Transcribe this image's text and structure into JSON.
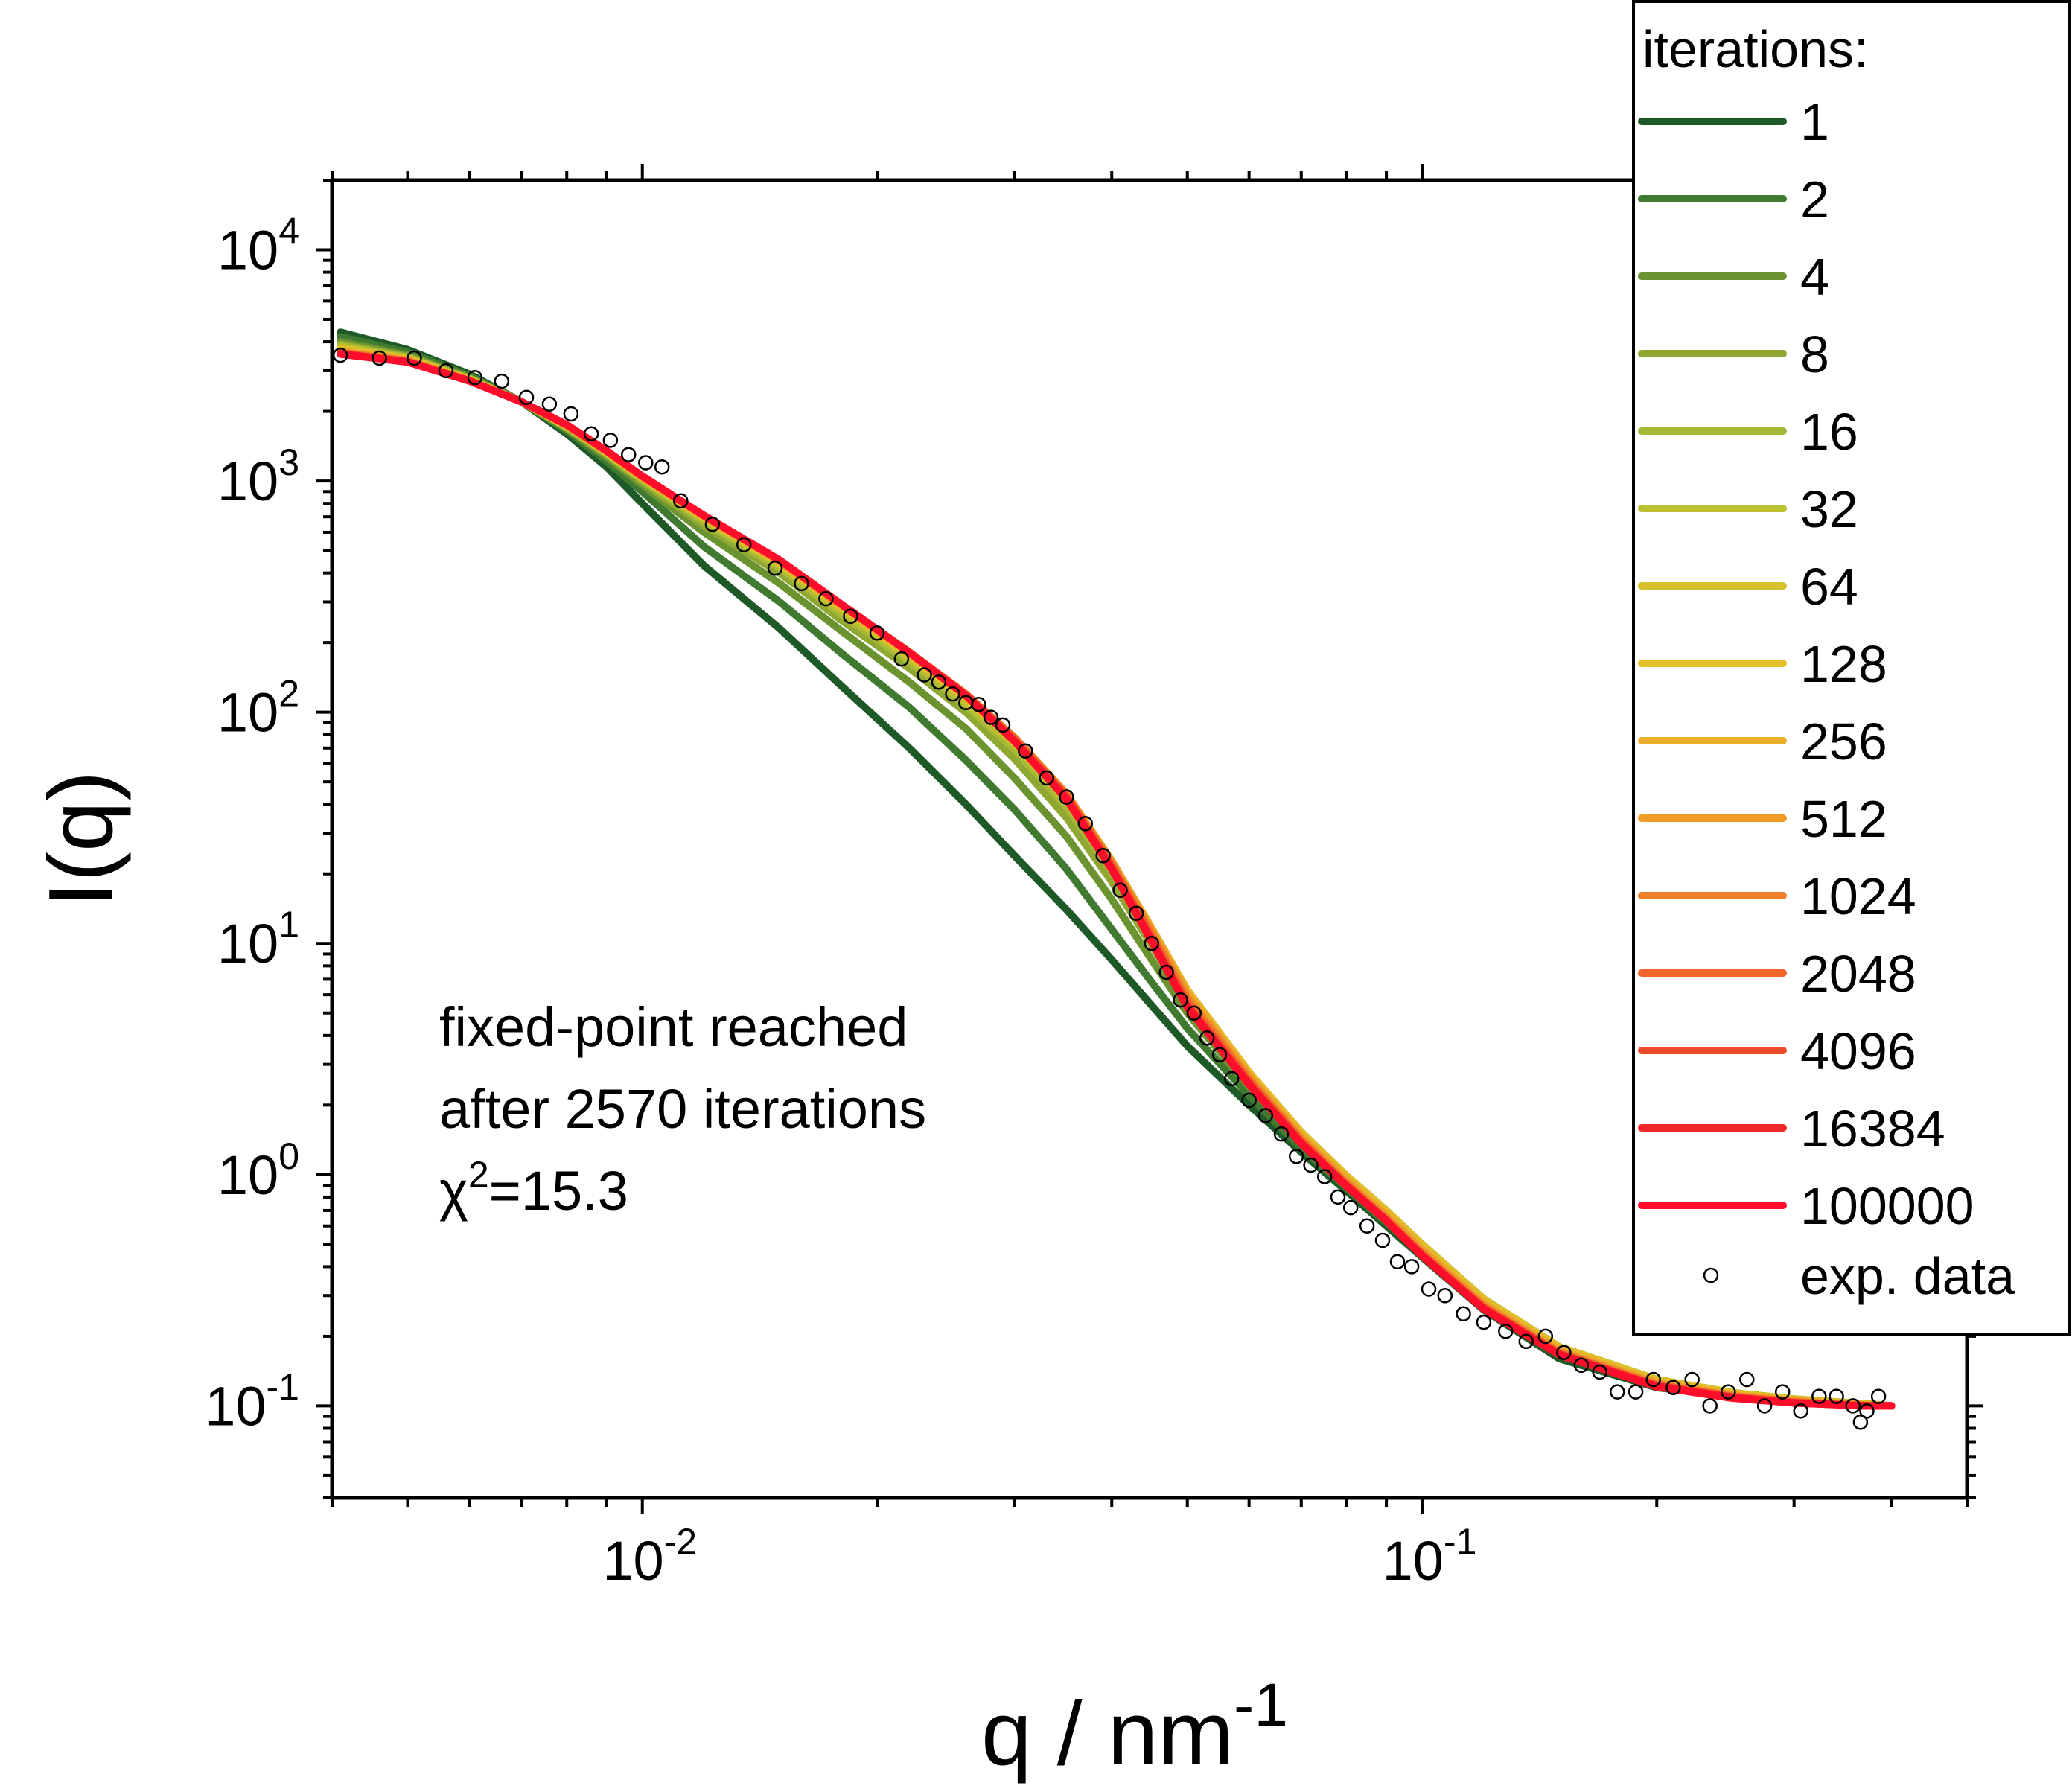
{
  "chart_data": {
    "type": "line",
    "xlabel": {
      "base": "q / nm",
      "exp": "-1"
    },
    "ylabel": "I(q)",
    "x_scale": "log",
    "y_scale": "log",
    "xlim": [
      0.004,
      0.5
    ],
    "ylim": [
      0.04,
      20000
    ],
    "x_ticks": [
      {
        "value": 0.01,
        "base": "10",
        "exp": "-2"
      },
      {
        "value": 0.1,
        "base": "10",
        "exp": "-1"
      }
    ],
    "y_ticks": [
      {
        "value": 10000,
        "base": "10",
        "exp": "4"
      },
      {
        "value": 1000,
        "base": "10",
        "exp": "3"
      },
      {
        "value": 100,
        "base": "10",
        "exp": "2"
      },
      {
        "value": 10,
        "base": "10",
        "exp": "1"
      },
      {
        "value": 1,
        "base": "10",
        "exp": "0"
      },
      {
        "value": 0.1,
        "base": "10",
        "exp": "-1"
      }
    ],
    "grid": false,
    "legend": {
      "title": "iterations:",
      "placement": "top-right",
      "data_label": "exp. data"
    },
    "annotation": {
      "line1": "fixed-point reached",
      "line2": "after 2570 iterations",
      "line3_base": "χ",
      "line3_exp": "2",
      "line3_rest": "=15.3"
    },
    "series": [
      {
        "name": "1",
        "color": "#1e5a28",
        "x": [
          0.0041,
          0.005,
          0.006,
          0.007,
          0.008,
          0.009,
          0.01,
          0.012,
          0.015,
          0.018,
          0.022,
          0.026,
          0.03,
          0.035,
          0.04,
          0.045,
          0.05,
          0.06,
          0.07,
          0.08,
          0.09,
          0.1,
          0.12,
          0.15,
          0.2,
          0.25,
          0.3,
          0.37,
          0.4
        ],
        "y": [
          4400,
          3700,
          2900,
          2200,
          1600,
          1150,
          800,
          430,
          230,
          130,
          70,
          40,
          24,
          14,
          8.5,
          5.4,
          3.6,
          2.0,
          1.25,
          0.85,
          0.6,
          0.44,
          0.26,
          0.16,
          0.12,
          0.11,
          0.105,
          0.102,
          0.1
        ]
      },
      {
        "name": "2",
        "color": "#3f7a30",
        "x": [
          0.0041,
          0.005,
          0.006,
          0.007,
          0.008,
          0.009,
          0.01,
          0.012,
          0.015,
          0.018,
          0.022,
          0.026,
          0.03,
          0.035,
          0.04,
          0.045,
          0.05,
          0.06,
          0.07,
          0.08,
          0.09,
          0.1,
          0.12,
          0.15,
          0.2,
          0.25,
          0.3,
          0.37,
          0.4
        ],
        "y": [
          4200,
          3600,
          2850,
          2200,
          1650,
          1220,
          900,
          520,
          300,
          180,
          105,
          62,
          38,
          21,
          11.5,
          6.8,
          4.3,
          2.2,
          1.3,
          0.88,
          0.62,
          0.46,
          0.27,
          0.17,
          0.125,
          0.112,
          0.106,
          0.102,
          0.1
        ]
      },
      {
        "name": "4",
        "color": "#6b9430",
        "x": [
          0.0041,
          0.005,
          0.006,
          0.007,
          0.008,
          0.009,
          0.01,
          0.012,
          0.015,
          0.018,
          0.022,
          0.026,
          0.03,
          0.035,
          0.04,
          0.045,
          0.05,
          0.06,
          0.07,
          0.08,
          0.09,
          0.1,
          0.12,
          0.15,
          0.2,
          0.25,
          0.3,
          0.37,
          0.4
        ],
        "y": [
          4000,
          3500,
          2800,
          2200,
          1680,
          1270,
          960,
          600,
          360,
          225,
          135,
          85,
          52,
          29,
          15.5,
          8.5,
          5.0,
          2.4,
          1.4,
          0.93,
          0.66,
          0.48,
          0.28,
          0.175,
          0.128,
          0.113,
          0.107,
          0.102,
          0.1
        ]
      },
      {
        "name": "8",
        "color": "#8fa832",
        "x": [
          0.0041,
          0.005,
          0.006,
          0.007,
          0.008,
          0.009,
          0.01,
          0.012,
          0.015,
          0.018,
          0.022,
          0.026,
          0.03,
          0.035,
          0.04,
          0.045,
          0.05,
          0.06,
          0.07,
          0.08,
          0.09,
          0.1,
          0.12,
          0.15,
          0.2,
          0.25,
          0.3,
          0.37,
          0.4
        ],
        "y": [
          3900,
          3450,
          2780,
          2200,
          1700,
          1300,
          990,
          640,
          400,
          250,
          155,
          100,
          63,
          35,
          18.5,
          9.8,
          5.6,
          2.6,
          1.48,
          0.97,
          0.69,
          0.5,
          0.29,
          0.18,
          0.13,
          0.114,
          0.107,
          0.102,
          0.1
        ]
      },
      {
        "name": "16",
        "color": "#a6b836",
        "x": [
          0.0041,
          0.005,
          0.006,
          0.007,
          0.008,
          0.009,
          0.01,
          0.012,
          0.015,
          0.018,
          0.022,
          0.026,
          0.03,
          0.035,
          0.04,
          0.045,
          0.05,
          0.06,
          0.07,
          0.08,
          0.09,
          0.1,
          0.12,
          0.15,
          0.2,
          0.25,
          0.3,
          0.37,
          0.4
        ],
        "y": [
          3850,
          3420,
          2770,
          2200,
          1710,
          1310,
          1010,
          665,
          420,
          265,
          165,
          107,
          69,
          39,
          20.5,
          10.8,
          6.0,
          2.7,
          1.52,
          0.99,
          0.7,
          0.5,
          0.29,
          0.18,
          0.13,
          0.114,
          0.107,
          0.102,
          0.1
        ]
      },
      {
        "name": "32",
        "color": "#bcbf30",
        "x": [
          0.0041,
          0.005,
          0.006,
          0.007,
          0.008,
          0.009,
          0.01,
          0.012,
          0.015,
          0.018,
          0.022,
          0.026,
          0.03,
          0.035,
          0.04,
          0.045,
          0.05,
          0.06,
          0.07,
          0.08,
          0.09,
          0.1,
          0.12,
          0.15,
          0.2,
          0.25,
          0.3,
          0.37,
          0.4
        ],
        "y": [
          3800,
          3400,
          2760,
          2200,
          1720,
          1320,
          1020,
          680,
          430,
          275,
          170,
          110,
          72,
          41,
          21.5,
          11.3,
          6.2,
          2.75,
          1.53,
          0.99,
          0.7,
          0.5,
          0.29,
          0.18,
          0.13,
          0.114,
          0.107,
          0.102,
          0.1
        ]
      },
      {
        "name": "64",
        "color": "#d6c02c",
        "x": [
          0.0041,
          0.005,
          0.006,
          0.007,
          0.008,
          0.009,
          0.01,
          0.012,
          0.015,
          0.018,
          0.022,
          0.026,
          0.03,
          0.035,
          0.04,
          0.045,
          0.05,
          0.06,
          0.07,
          0.08,
          0.09,
          0.1,
          0.12,
          0.15,
          0.2,
          0.25,
          0.3,
          0.37,
          0.4
        ],
        "y": [
          3750,
          3380,
          2750,
          2200,
          1730,
          1330,
          1030,
          690,
          440,
          282,
          175,
          114,
          75,
          43,
          22.3,
          11.6,
          6.3,
          2.78,
          1.53,
          0.99,
          0.7,
          0.5,
          0.29,
          0.18,
          0.13,
          0.114,
          0.107,
          0.102,
          0.1
        ]
      },
      {
        "name": "128",
        "color": "#e2c02a",
        "x": [
          0.0041,
          0.005,
          0.006,
          0.007,
          0.008,
          0.009,
          0.01,
          0.012,
          0.015,
          0.018,
          0.022,
          0.026,
          0.03,
          0.035,
          0.04,
          0.045,
          0.05,
          0.06,
          0.07,
          0.08,
          0.09,
          0.1,
          0.12,
          0.15,
          0.2,
          0.25,
          0.3,
          0.37,
          0.4
        ],
        "y": [
          3700,
          3360,
          2740,
          2200,
          1735,
          1335,
          1035,
          695,
          445,
          286,
          178,
          116,
          77,
          44,
          22.7,
          11.7,
          6.3,
          2.78,
          1.52,
          0.98,
          0.69,
          0.49,
          0.285,
          0.178,
          0.129,
          0.113,
          0.106,
          0.101,
          0.1
        ]
      },
      {
        "name": "256",
        "color": "#eaae2a",
        "x": [
          0.0041,
          0.005,
          0.006,
          0.007,
          0.008,
          0.009,
          0.01,
          0.012,
          0.015,
          0.018,
          0.022,
          0.026,
          0.03,
          0.035,
          0.04,
          0.045,
          0.05,
          0.06,
          0.07,
          0.08,
          0.09,
          0.1,
          0.12,
          0.15,
          0.2,
          0.25,
          0.3,
          0.37,
          0.4
        ],
        "y": [
          3660,
          3340,
          2730,
          2200,
          1740,
          1340,
          1040,
          700,
          448,
          288,
          180,
          118,
          78,
          44.5,
          22.8,
          11.6,
          6.2,
          2.72,
          1.48,
          0.96,
          0.68,
          0.48,
          0.28,
          0.175,
          0.127,
          0.112,
          0.105,
          0.101,
          0.1
        ]
      },
      {
        "name": "512",
        "color": "#f09a28",
        "x": [
          0.0041,
          0.005,
          0.006,
          0.007,
          0.008,
          0.009,
          0.01,
          0.012,
          0.015,
          0.018,
          0.022,
          0.026,
          0.03,
          0.035,
          0.04,
          0.045,
          0.05,
          0.06,
          0.07,
          0.08,
          0.09,
          0.1,
          0.12,
          0.15,
          0.2,
          0.25,
          0.3,
          0.37,
          0.4
        ],
        "y": [
          3630,
          3320,
          2725,
          2200,
          1742,
          1342,
          1042,
          702,
          450,
          290,
          181,
          119,
          78,
          44.5,
          22.6,
          11.4,
          6.0,
          2.66,
          1.45,
          0.94,
          0.66,
          0.47,
          0.275,
          0.172,
          0.125,
          0.111,
          0.105,
          0.101,
          0.1
        ]
      },
      {
        "name": "1024",
        "color": "#f07f2a",
        "x": [
          0.0041,
          0.005,
          0.006,
          0.007,
          0.008,
          0.009,
          0.01,
          0.012,
          0.015,
          0.018,
          0.022,
          0.026,
          0.03,
          0.035,
          0.04,
          0.045,
          0.05,
          0.06,
          0.07,
          0.08,
          0.09,
          0.1,
          0.12,
          0.15,
          0.2,
          0.25,
          0.3,
          0.37,
          0.4
        ],
        "y": [
          3600,
          3300,
          2720,
          2200,
          1745,
          1345,
          1045,
          704,
          452,
          292,
          182,
          120,
          78,
          44,
          22.2,
          11.1,
          5.8,
          2.6,
          1.42,
          0.92,
          0.65,
          0.46,
          0.27,
          0.17,
          0.124,
          0.11,
          0.104,
          0.1,
          0.1
        ]
      },
      {
        "name": "2048",
        "color": "#f0652a",
        "x": [
          0.0041,
          0.005,
          0.006,
          0.007,
          0.008,
          0.009,
          0.01,
          0.012,
          0.015,
          0.018,
          0.022,
          0.026,
          0.03,
          0.035,
          0.04,
          0.045,
          0.05,
          0.06,
          0.07,
          0.08,
          0.09,
          0.1,
          0.12,
          0.15,
          0.2,
          0.25,
          0.3,
          0.37,
          0.4
        ],
        "y": [
          3580,
          3290,
          2715,
          2200,
          1747,
          1347,
          1047,
          706,
          453,
          293,
          182,
          120,
          77,
          43.5,
          21.8,
          10.8,
          5.6,
          2.55,
          1.4,
          0.91,
          0.64,
          0.455,
          0.268,
          0.169,
          0.123,
          0.11,
          0.104,
          0.1,
          0.1
        ]
      },
      {
        "name": "4096",
        "color": "#ee4a2a",
        "x": [
          0.0041,
          0.005,
          0.006,
          0.007,
          0.008,
          0.009,
          0.01,
          0.012,
          0.015,
          0.018,
          0.022,
          0.026,
          0.03,
          0.035,
          0.04,
          0.045,
          0.05,
          0.06,
          0.07,
          0.08,
          0.09,
          0.1,
          0.12,
          0.15,
          0.2,
          0.25,
          0.3,
          0.37,
          0.4
        ],
        "y": [
          3560,
          3280,
          2712,
          2200,
          1748,
          1348,
          1048,
          707,
          454,
          293,
          182,
          119,
          76,
          43,
          21.4,
          10.5,
          5.45,
          2.5,
          1.38,
          0.9,
          0.635,
          0.45,
          0.265,
          0.168,
          0.122,
          0.109,
          0.103,
          0.1,
          0.1
        ]
      },
      {
        "name": "16384",
        "color": "#f0282c",
        "x": [
          0.0041,
          0.005,
          0.006,
          0.007,
          0.008,
          0.009,
          0.01,
          0.012,
          0.015,
          0.018,
          0.022,
          0.026,
          0.03,
          0.035,
          0.04,
          0.045,
          0.05,
          0.06,
          0.07,
          0.08,
          0.09,
          0.1,
          0.12,
          0.15,
          0.2,
          0.25,
          0.3,
          0.37,
          0.4
        ],
        "y": [
          3550,
          3275,
          2710,
          2200,
          1749,
          1349,
          1049,
          708,
          455,
          293,
          181,
          118,
          75,
          42.5,
          21.1,
          10.3,
          5.35,
          2.47,
          1.37,
          0.895,
          0.632,
          0.448,
          0.264,
          0.167,
          0.122,
          0.109,
          0.103,
          0.1,
          0.1
        ]
      },
      {
        "name": "100000",
        "color": "#ff0d2a",
        "x": [
          0.0041,
          0.005,
          0.006,
          0.007,
          0.008,
          0.009,
          0.01,
          0.012,
          0.015,
          0.018,
          0.022,
          0.026,
          0.03,
          0.035,
          0.04,
          0.045,
          0.05,
          0.06,
          0.07,
          0.08,
          0.09,
          0.1,
          0.12,
          0.15,
          0.2,
          0.25,
          0.3,
          0.37,
          0.4
        ],
        "y": [
          3540,
          3270,
          2708,
          2200,
          1750,
          1350,
          1050,
          709,
          455,
          293,
          181,
          118,
          75,
          42,
          20.9,
          10.2,
          5.3,
          2.45,
          1.36,
          0.89,
          0.63,
          0.445,
          0.262,
          0.166,
          0.121,
          0.108,
          0.103,
          0.1,
          0.1
        ]
      }
    ],
    "scatter": {
      "name": "exp. data",
      "x": [
        0.0041,
        0.0046,
        0.0051,
        0.0056,
        0.0061,
        0.0066,
        0.0071,
        0.0076,
        0.0081,
        0.0086,
        0.0091,
        0.0096,
        0.0101,
        0.0106,
        0.0112,
        0.0123,
        0.0135,
        0.0148,
        0.016,
        0.0172,
        0.0185,
        0.02,
        0.0215,
        0.023,
        0.024,
        0.025,
        0.026,
        0.027,
        0.028,
        0.029,
        0.031,
        0.033,
        0.035,
        0.037,
        0.039,
        0.041,
        0.043,
        0.045,
        0.047,
        0.049,
        0.051,
        0.053,
        0.055,
        0.057,
        0.06,
        0.063,
        0.066,
        0.069,
        0.072,
        0.075,
        0.078,
        0.081,
        0.085,
        0.089,
        0.093,
        0.097,
        0.102,
        0.107,
        0.113,
        0.12,
        0.128,
        0.136,
        0.144,
        0.152,
        0.16,
        0.169,
        0.178,
        0.188,
        0.198,
        0.21,
        0.222,
        0.234,
        0.247,
        0.261,
        0.275,
        0.29,
        0.306,
        0.323,
        0.34,
        0.357,
        0.365,
        0.372,
        0.385
      ],
      "y": [
        3500,
        3400,
        3400,
        3000,
        2800,
        2700,
        2300,
        2150,
        1950,
        1600,
        1500,
        1300,
        1200,
        1150,
        820,
        650,
        530,
        420,
        360,
        310,
        260,
        220,
        170,
        145,
        135,
        120,
        110,
        108,
        95,
        88,
        68,
        52,
        43,
        33,
        24,
        17,
        13.5,
        10,
        7.5,
        5.7,
        5.0,
        3.9,
        3.3,
        2.6,
        2.1,
        1.8,
        1.5,
        1.2,
        1.1,
        0.98,
        0.8,
        0.72,
        0.6,
        0.52,
        0.42,
        0.4,
        0.32,
        0.3,
        0.25,
        0.23,
        0.21,
        0.19,
        0.2,
        0.17,
        0.15,
        0.14,
        0.115,
        0.115,
        0.13,
        0.12,
        0.13,
        0.1,
        0.115,
        0.13,
        0.1,
        0.115,
        0.095,
        0.11,
        0.11,
        0.1,
        0.085,
        0.095,
        0.11
      ]
    }
  }
}
